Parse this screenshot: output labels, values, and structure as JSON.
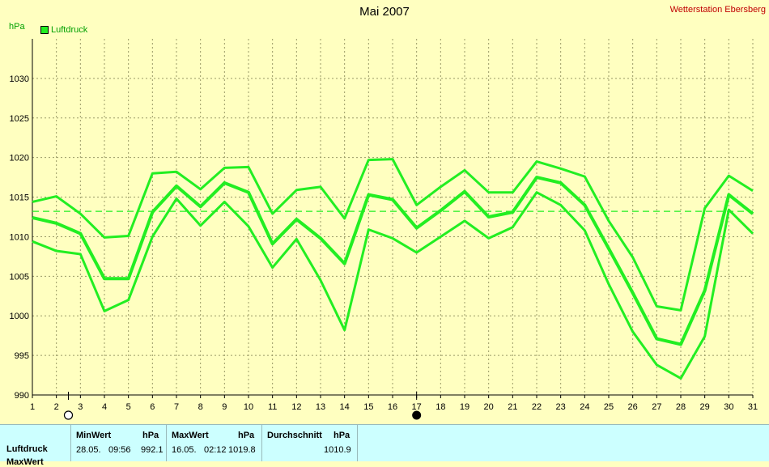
{
  "header": {
    "title": "Mai 2007",
    "station": "Wetterstation Ebersberg",
    "unit": "hPa",
    "legend_label": "Luftdruck"
  },
  "colors": {
    "background": "#ffffc0",
    "series": "#22ee22",
    "grid": "#999966",
    "station_text": "#c00000",
    "stats_background": "#ccffff"
  },
  "chart_data": {
    "type": "line",
    "title": "Mai 2007",
    "ylabel": "hPa",
    "xlim": [
      1,
      31
    ],
    "ylim": [
      990,
      1035
    ],
    "grid": true,
    "legend_placement": "top-left",
    "x_ticks": [
      1,
      2,
      3,
      4,
      5,
      6,
      7,
      8,
      9,
      10,
      11,
      12,
      13,
      14,
      15,
      16,
      17,
      18,
      19,
      20,
      21,
      22,
      23,
      24,
      25,
      26,
      27,
      28,
      29,
      30,
      31
    ],
    "y_ticks": [
      990,
      995,
      1000,
      1005,
      1010,
      1015,
      1020,
      1025,
      1030
    ],
    "y_tick_labels": [
      "990",
      "995",
      "1000",
      "1005",
      "1010",
      "1015",
      "1020",
      "1025",
      "1030"
    ],
    "x": [
      1,
      2,
      3,
      4,
      5,
      6,
      7,
      8,
      9,
      10,
      11,
      12,
      13,
      14,
      15,
      16,
      17,
      18,
      19,
      20,
      21,
      22,
      23,
      24,
      25,
      26,
      27,
      28,
      29,
      30,
      31
    ],
    "series": [
      {
        "values": [
          1014.4,
          1015.1,
          1012.9,
          1009.9,
          1010.1,
          1018.0,
          1018.2,
          1016.0,
          1018.7,
          1018.8,
          1012.9,
          1015.9,
          1016.3,
          1012.3,
          1019.7,
          1019.8,
          1014.0,
          1016.3,
          1018.4,
          1015.6,
          1015.6,
          1019.5,
          1018.6,
          1017.6,
          1012.0,
          1007.4,
          1001.2,
          1000.7,
          1013.6,
          1017.7,
          1015.8
        ]
      },
      {
        "values": [
          1012.4,
          1011.7,
          1010.4,
          1004.7,
          1004.7,
          1013.1,
          1016.4,
          1013.8,
          1016.8,
          1015.6,
          1009.1,
          1012.2,
          1009.8,
          1006.6,
          1015.3,
          1014.7,
          1011.1,
          1013.3,
          1015.7,
          1012.5,
          1013.1,
          1017.5,
          1016.8,
          1014.0,
          1008.5,
          1002.9,
          997.1,
          996.4,
          1003.2,
          1015.3,
          1012.9
        ]
      },
      {
        "values": [
          1009.4,
          1008.2,
          1007.8,
          1000.6,
          1002.0,
          1010.0,
          1014.8,
          1011.4,
          1014.4,
          1011.3,
          1006.1,
          1009.7,
          1004.5,
          998.2,
          1010.9,
          1009.8,
          1008.0,
          1010.0,
          1012.0,
          1009.8,
          1011.2,
          1015.6,
          1014.0,
          1010.8,
          1004.0,
          998.0,
          993.8,
          992.1,
          997.4,
          1013.4,
          1010.4
        ]
      }
    ],
    "reference_lines": [
      {
        "value": 1013.2,
        "style": "dashed"
      }
    ],
    "markers": [
      {
        "x": 2.5,
        "symbol": "open-circle"
      },
      {
        "x": 17,
        "symbol": "filled-circle"
      }
    ]
  },
  "stats": {
    "row_labels": [
      "Luftdruck",
      "MaxWert"
    ],
    "min": {
      "header": "MinWert",
      "unit": "hPa",
      "date": "28.05.",
      "time": "09:56",
      "value": "992.1"
    },
    "max": {
      "header": "MaxWert",
      "unit": "hPa",
      "date": "16.05.",
      "time": "02:12",
      "value": "1019.8"
    },
    "avg": {
      "header": "Durchschnitt",
      "unit": "hPa",
      "value": "1010.9"
    }
  }
}
